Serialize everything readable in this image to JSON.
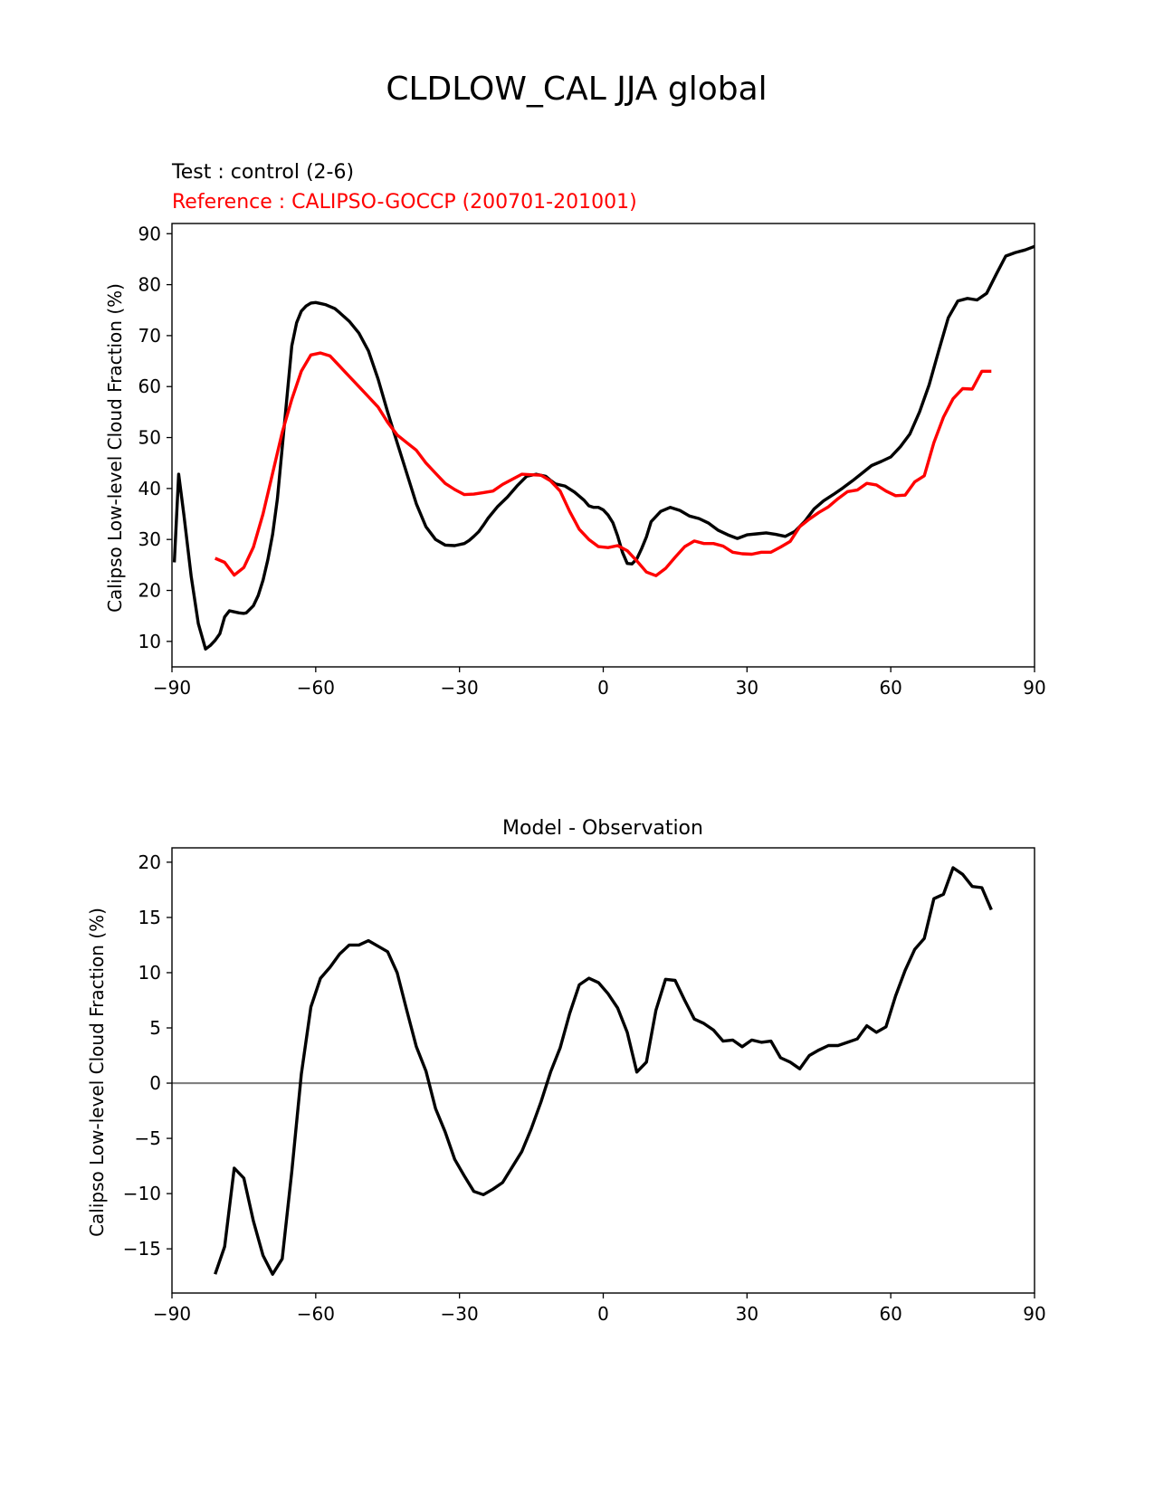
{
  "figure": {
    "title": "CLDLOW_CAL JJA global"
  },
  "chart_data": [
    {
      "type": "line",
      "title": "",
      "test_label": "Test : control (2-6)",
      "reference_label": "Reference : CALIPSO-GOCCP (200701-201001)",
      "xlabel": "",
      "ylabel": "Calipso Low-level Cloud Fraction (%)",
      "xlim": [
        -90,
        90
      ],
      "ylim": [
        5,
        92
      ],
      "xticks": [
        -90,
        -60,
        -30,
        0,
        30,
        60,
        90
      ],
      "xtick_labels": [
        "−90",
        "−60",
        "−30",
        "0",
        "30",
        "60",
        "90"
      ],
      "yticks": [
        10,
        20,
        30,
        40,
        50,
        60,
        70,
        80,
        90
      ],
      "ytick_labels": [
        "10",
        "20",
        "30",
        "40",
        "50",
        "60",
        "70",
        "80",
        "90"
      ],
      "grid": false,
      "series": [
        {
          "name": "Test : control (2-6)",
          "color": "#000000",
          "x": [
            -89.5,
            -88.6,
            -87.5,
            -86,
            -84.5,
            -83,
            -82,
            -81,
            -80,
            -79,
            -78,
            -77,
            -76,
            -75,
            -74.5,
            -73,
            -72,
            -71,
            -70,
            -69,
            -68,
            -67,
            -66,
            -65,
            -64,
            -63,
            -62,
            -61,
            -60,
            -59,
            -58,
            -57,
            -56,
            -55,
            -53,
            -51,
            -49,
            -47,
            -45,
            -43,
            -41,
            -39,
            -37,
            -35,
            -33,
            -31,
            -29,
            -28,
            -27,
            -26,
            -25,
            -24,
            -22,
            -20,
            -18,
            -16,
            -14,
            -12,
            -11,
            -10,
            -8,
            -6,
            -4,
            -3,
            -2,
            -1,
            0,
            1,
            2,
            3,
            4,
            5,
            6,
            7,
            8,
            9,
            10,
            12,
            14,
            16,
            18,
            20,
            22,
            24,
            26,
            28,
            30,
            32,
            34,
            36,
            38,
            40,
            42,
            44,
            46,
            48,
            50,
            52,
            54,
            56,
            58,
            60,
            62,
            64,
            66,
            68,
            70,
            72,
            74,
            76,
            78,
            80,
            82,
            84,
            86,
            88,
            90
          ],
          "y": [
            25.5,
            42.8,
            34.8,
            22.8,
            13.5,
            8.5,
            9.2,
            10.2,
            11.5,
            14.8,
            16,
            15.8,
            15.6,
            15.5,
            15.6,
            17,
            19,
            22,
            26,
            31,
            38,
            48,
            58,
            68,
            72.5,
            74.8,
            75.8,
            76.4,
            76.5,
            76.3,
            76.1,
            75.7,
            75.3,
            74.5,
            72.8,
            70.5,
            67,
            61.5,
            55,
            49,
            43,
            37,
            32.5,
            30,
            28.9,
            28.8,
            29.2,
            29.8,
            30.6,
            31.5,
            32.8,
            34.2,
            36.5,
            38.3,
            40.5,
            42.4,
            42.8,
            42.4,
            41.6,
            40.9,
            40.5,
            39.3,
            37.7,
            36.6,
            36.3,
            36.3,
            35.8,
            34.8,
            33.3,
            30.7,
            27.5,
            25.3,
            25.2,
            26.2,
            28.2,
            30.5,
            33.5,
            35.5,
            36.3,
            35.7,
            34.6,
            34.1,
            33.2,
            31.8,
            30.9,
            30.2,
            30.9,
            31.1,
            31.3,
            31.0,
            30.6,
            31.6,
            33.5,
            36,
            37.6,
            38.8,
            40.1,
            41.5,
            43,
            44.5,
            45.3,
            46.2,
            48.2,
            50.7,
            55,
            60.3,
            67,
            73.5,
            76.8,
            77.3,
            77,
            78.3,
            82,
            85.6,
            86.3,
            86.8,
            87.5
          ]
        },
        {
          "name": "Reference : CALIPSO-GOCCP (200701-201001)",
          "color": "#ff0000",
          "x": [
            -81,
            -79,
            -77,
            -75,
            -73,
            -71,
            -69,
            -67,
            -65,
            -63,
            -61,
            -59,
            -57,
            -55,
            -53,
            -51,
            -49,
            -47,
            -45,
            -43,
            -41,
            -39,
            -37,
            -35,
            -33,
            -31,
            -29,
            -27,
            -25,
            -23,
            -21,
            -19,
            -17,
            -15,
            -13,
            -11,
            -9,
            -7,
            -5,
            -3,
            -1,
            1,
            3,
            5,
            7,
            9,
            11,
            13,
            15,
            17,
            19,
            21,
            23,
            25,
            27,
            29,
            31,
            33,
            35,
            37,
            39,
            41,
            43,
            45,
            47,
            49,
            51,
            53,
            55,
            57,
            59,
            61,
            63,
            65,
            67,
            69,
            71,
            73,
            75,
            77,
            79,
            81
          ],
          "y": [
            26.3,
            25.5,
            23.0,
            24.5,
            28.5,
            35,
            43,
            51,
            57.5,
            63,
            66.2,
            66.6,
            66.0,
            64.0,
            62.0,
            60.0,
            58.0,
            56.0,
            53.0,
            50.5,
            49.0,
            47.5,
            45.0,
            43.0,
            41.0,
            39.8,
            38.8,
            38.9,
            39.2,
            39.5,
            40.8,
            41.8,
            42.8,
            42.7,
            42.6,
            41.5,
            39.5,
            35.5,
            32.0,
            30.0,
            28.6,
            28.4,
            28.8,
            27.8,
            25.8,
            23.6,
            22.9,
            24.3,
            26.5,
            28.6,
            29.7,
            29.2,
            29.2,
            28.7,
            27.5,
            27.2,
            27.1,
            27.5,
            27.5,
            28.5,
            29.6,
            32.5,
            34.0,
            35.3,
            36.4,
            38.0,
            39.4,
            39.7,
            41.0,
            40.7,
            39.5,
            38.6,
            38.7,
            41.3,
            42.5,
            49.0,
            54.0,
            57.6,
            59.6,
            59.5,
            63.0,
            63.0
          ]
        }
      ]
    },
    {
      "type": "line",
      "title": "Model - Observation",
      "xlabel": "",
      "ylabel": "Calipso Low-level Cloud Fraction (%)",
      "xlim": [
        -90,
        90
      ],
      "ylim": [
        -19,
        21.3
      ],
      "xticks": [
        -90,
        -60,
        -30,
        0,
        30,
        60,
        90
      ],
      "xtick_labels": [
        "−90",
        "−60",
        "−30",
        "0",
        "30",
        "60",
        "90"
      ],
      "yticks": [
        -15,
        -10,
        -5,
        0,
        5,
        10,
        15,
        20
      ],
      "ytick_labels": [
        "−15",
        "−10",
        "−5",
        "0",
        "5",
        "10",
        "15",
        "20"
      ],
      "grid": false,
      "zero_line": {
        "y": 0,
        "color": "#808080"
      },
      "series": [
        {
          "name": "Model - Observation",
          "color": "#000000",
          "x": [
            -81,
            -79,
            -77,
            -75,
            -73,
            -71,
            -69,
            -67,
            -65,
            -63,
            -61,
            -59,
            -57,
            -55,
            -53,
            -51,
            -49,
            -47,
            -45,
            -43,
            -41,
            -39,
            -37,
            -35,
            -33,
            -31,
            -29,
            -27,
            -25,
            -23,
            -21,
            -19,
            -17,
            -15,
            -13,
            -11,
            -9,
            -7,
            -5,
            -3,
            -1,
            1,
            3,
            5,
            7,
            9,
            11,
            13,
            15,
            17,
            19,
            21,
            23,
            25,
            27,
            29,
            31,
            33,
            35,
            37,
            39,
            41,
            43,
            45,
            47,
            49,
            51,
            53,
            55,
            57,
            59,
            61,
            63,
            65,
            67,
            69,
            71,
            73,
            75,
            77,
            79,
            81
          ],
          "y": [
            -17.3,
            -14.8,
            -7.7,
            -8.6,
            -12.5,
            -15.6,
            -17.3,
            -15.9,
            -8.0,
            0.8,
            6.9,
            9.5,
            10.5,
            11.7,
            12.5,
            12.5,
            12.9,
            12.4,
            11.9,
            10.0,
            6.6,
            3.3,
            1.1,
            -2.3,
            -4.4,
            -6.9,
            -8.4,
            -9.8,
            -10.1,
            -9.6,
            -9.0,
            -7.6,
            -6.2,
            -4.1,
            -1.7,
            1.0,
            3.2,
            6.3,
            8.9,
            9.5,
            9.1,
            8.1,
            6.8,
            4.6,
            1.0,
            1.9,
            6.6,
            9.4,
            9.3,
            7.5,
            5.8,
            5.4,
            4.8,
            3.8,
            3.9,
            3.3,
            3.9,
            3.7,
            3.8,
            2.3,
            1.9,
            1.3,
            2.5,
            3.0,
            3.4,
            3.4,
            3.7,
            4.0,
            5.2,
            4.6,
            5.1,
            7.9,
            10.2,
            12.1,
            13.1,
            16.7,
            17.1,
            19.5,
            18.9,
            17.8,
            17.7,
            15.7
          ]
        }
      ]
    }
  ]
}
